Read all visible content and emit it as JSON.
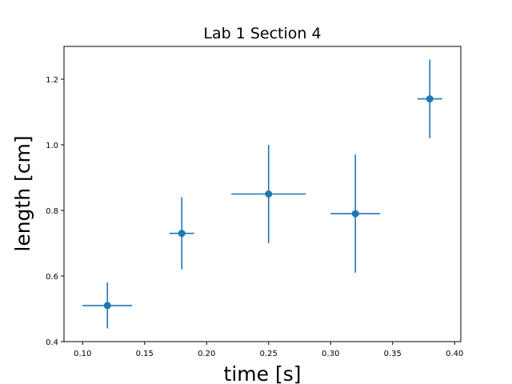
{
  "chart_data": {
    "type": "scatter",
    "title": "Lab 1 Section 4",
    "xlabel": "time [s]",
    "ylabel": "length [cm]",
    "xlim": [
      0.085,
      0.405
    ],
    "ylim": [
      0.4,
      1.3
    ],
    "xticks": [
      0.1,
      0.15,
      0.2,
      0.25,
      0.3,
      0.35,
      0.4
    ],
    "xtick_labels": [
      "0.10",
      "0.15",
      "0.20",
      "0.25",
      "0.30",
      "0.35",
      "0.40"
    ],
    "yticks": [
      0.4,
      0.6,
      0.8,
      1.0,
      1.2
    ],
    "ytick_labels": [
      "0.4",
      "0.6",
      "0.8",
      "1.0",
      "1.2"
    ],
    "grid": false,
    "color": "#1f77b4",
    "points": [
      {
        "x": 0.12,
        "y": 0.51,
        "xerr": 0.02,
        "yerr": 0.07
      },
      {
        "x": 0.18,
        "y": 0.73,
        "xerr": 0.01,
        "yerr": 0.11
      },
      {
        "x": 0.25,
        "y": 0.85,
        "xerr": 0.03,
        "yerr": 0.15
      },
      {
        "x": 0.32,
        "y": 0.79,
        "xerr": 0.02,
        "yerr": 0.18
      },
      {
        "x": 0.38,
        "y": 1.14,
        "xerr": 0.01,
        "yerr": 0.12
      }
    ]
  }
}
